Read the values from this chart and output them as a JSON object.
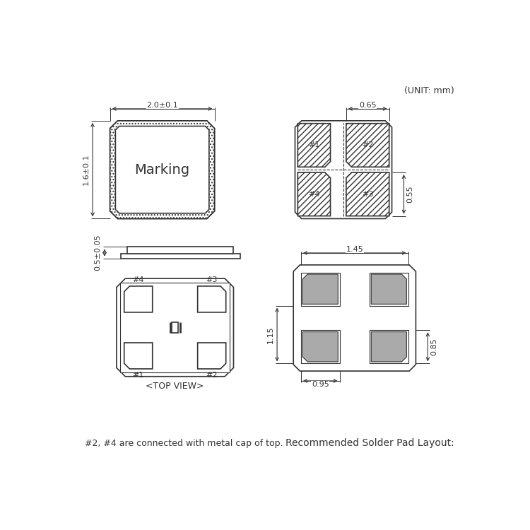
{
  "bg_color": "#ffffff",
  "line_color": "#333333",
  "gray_fill": "#aaaaaa",
  "unit_text": "(UNIT: mm)",
  "dim_065": "0.65",
  "dim_055": "0.55",
  "dim_145": "1.45",
  "dim_115": "1.15",
  "dim_085": "0.85",
  "dim_095": "0.95",
  "dim_20": "2.0±0.1",
  "dim_16": "1.6±0.1",
  "dim_05": "0.5±0.05",
  "marking_text": "Marking",
  "top_view_label": "<TOP VIEW>",
  "note_text": "#2, #4 are connected with metal cap of top.",
  "solder_pad_label": "Recommended Solder Pad Layout:"
}
